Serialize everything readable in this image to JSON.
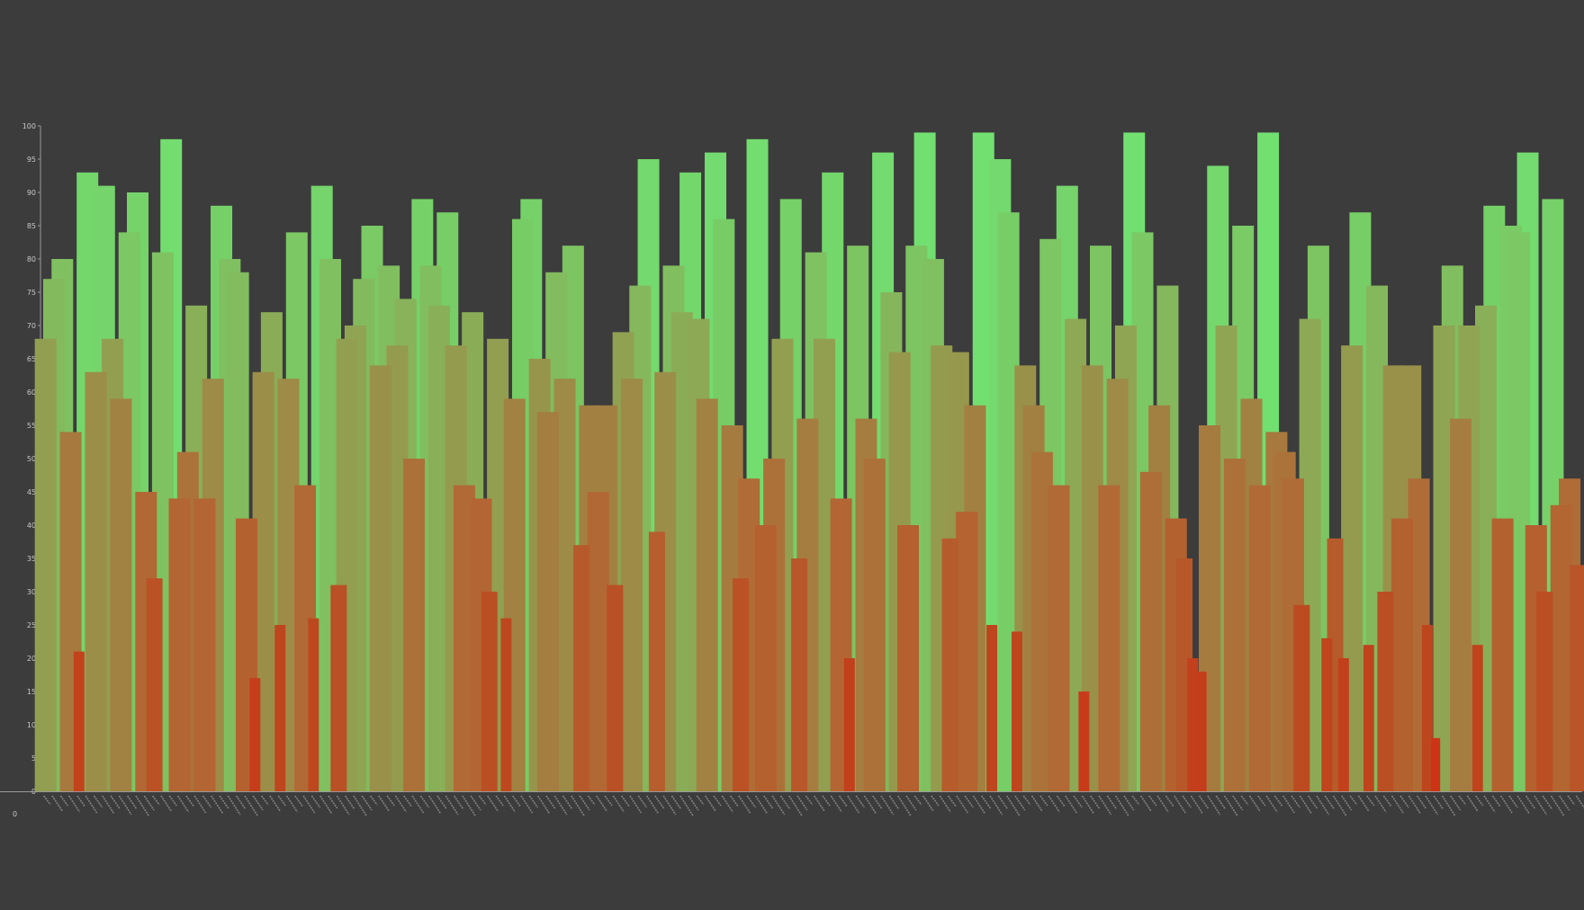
{
  "chart_data": {
    "type": "bar",
    "grid": false,
    "ylim": [
      0,
      100
    ],
    "y_ticks": [
      "0",
      "5",
      "10",
      "15",
      "20",
      "25",
      "30",
      "35",
      "40",
      "45",
      "50",
      "55",
      "60",
      "65",
      "70",
      "75",
      "80",
      "85",
      "90",
      "95",
      "100"
    ],
    "corner_label": "0",
    "colors": {
      "background": "#3c3c3c",
      "high": "#72e072",
      "low": "#d42a14",
      "axis": "#9a9a9a",
      "text": "#c8c8c8"
    },
    "values": [
      68,
      77,
      80,
      54,
      21,
      93,
      63,
      91,
      68,
      59,
      84,
      90,
      45,
      32,
      81,
      98,
      44,
      51,
      73,
      44,
      62,
      88,
      80,
      78,
      41,
      17,
      63,
      72,
      25,
      62,
      84,
      46,
      26,
      91,
      80,
      31,
      68,
      70,
      77,
      85,
      64,
      79,
      67,
      74,
      50,
      89,
      79,
      73,
      87,
      67,
      46,
      72,
      44,
      30,
      68,
      26,
      59,
      86,
      89,
      65,
      57,
      78,
      62,
      82,
      37,
      58,
      45,
      58,
      31,
      69,
      62,
      76,
      95,
      39,
      63,
      79,
      72,
      93,
      71,
      59,
      96,
      86,
      55,
      32,
      47,
      98,
      40,
      50,
      68,
      89,
      35,
      56,
      81,
      68,
      93,
      44,
      20,
      82,
      56,
      50,
      96,
      75,
      66,
      40,
      82,
      99,
      80,
      67,
      38,
      66,
      42,
      58,
      99,
      25,
      95,
      87,
      24,
      64,
      58,
      51,
      83,
      46,
      91,
      71,
      15,
      64,
      82,
      46,
      62,
      70,
      99,
      84,
      48,
      58,
      76,
      41,
      35,
      20,
      18,
      55,
      94,
      70,
      50,
      85,
      59,
      46,
      99,
      54,
      51,
      47,
      28,
      71,
      82,
      23,
      38,
      20,
      67,
      87,
      22,
      76,
      30,
      64,
      41,
      64,
      47,
      25,
      8,
      70,
      79,
      56,
      70,
      22,
      73,
      88,
      41,
      85,
      84,
      96,
      40,
      30,
      89,
      43,
      47,
      34
    ]
  }
}
